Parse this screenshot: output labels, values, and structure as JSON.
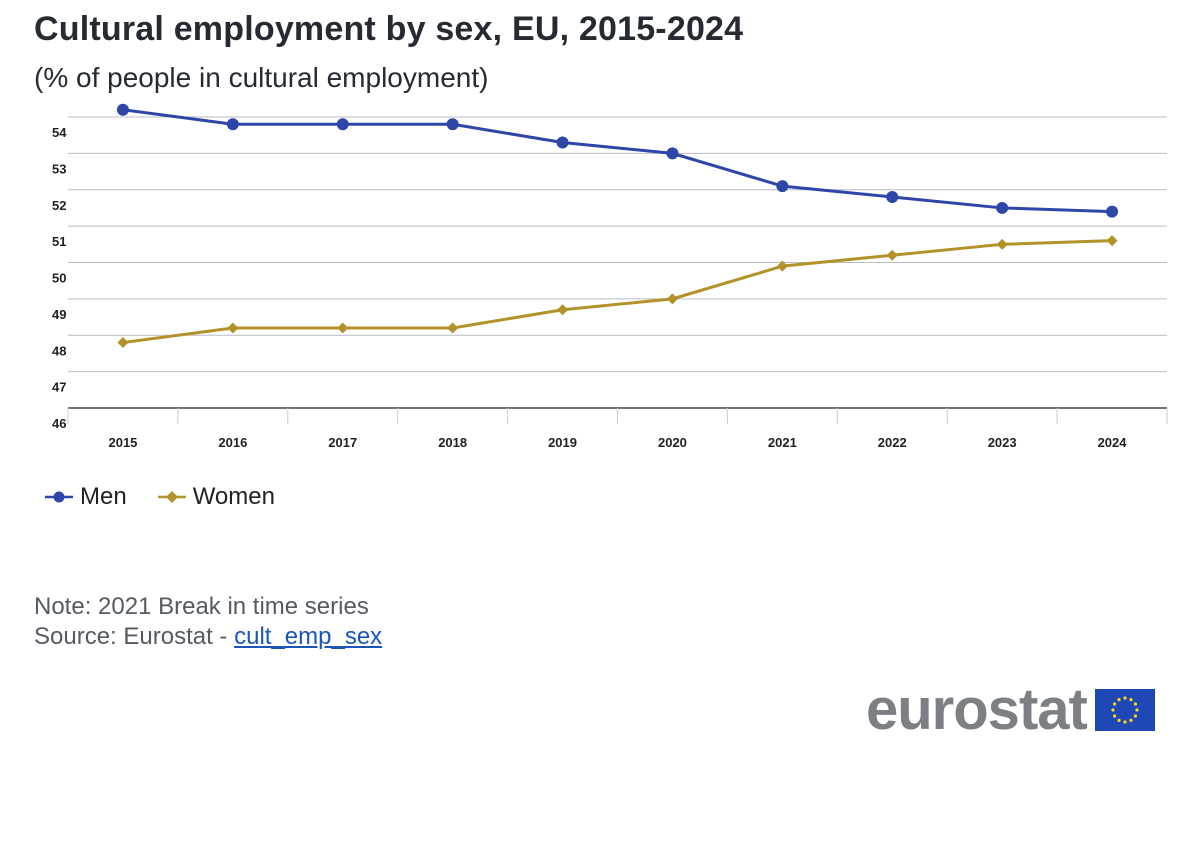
{
  "title": "Cultural employment by sex, EU, 2015-2024",
  "subtitle": "(% of people in cultural employment)",
  "legend": [
    {
      "label": "Men",
      "color": "#2e46a8",
      "marker": "circle"
    },
    {
      "label": "Women",
      "color": "#b3922a",
      "marker": "diamond"
    }
  ],
  "note": "Note: 2021 Break in time series",
  "source_prefix": "Source: Eurostat - ",
  "source_link": "cult_emp_sex",
  "logo_text": "eurostat",
  "chart_data": {
    "type": "line",
    "x": [
      "2015",
      "2016",
      "2017",
      "2018",
      "2019",
      "2020",
      "2021",
      "2022",
      "2023",
      "2024"
    ],
    "ylim": [
      46,
      54
    ],
    "yticks": [
      "46",
      "47",
      "48",
      "49",
      "50",
      "51",
      "52",
      "53",
      "54"
    ],
    "grid": true,
    "legend_position": "bottom-left",
    "series": [
      {
        "name": "Men",
        "color": "#2e46a8",
        "marker": "circle",
        "values": [
          54.2,
          53.8,
          53.8,
          53.8,
          53.3,
          53.0,
          52.1,
          51.8,
          51.5,
          51.4
        ]
      },
      {
        "name": "Women",
        "color": "#b3922a",
        "marker": "diamond",
        "values": [
          47.8,
          48.2,
          48.2,
          48.2,
          48.7,
          49.0,
          49.9,
          50.2,
          50.5,
          50.6
        ]
      }
    ]
  }
}
